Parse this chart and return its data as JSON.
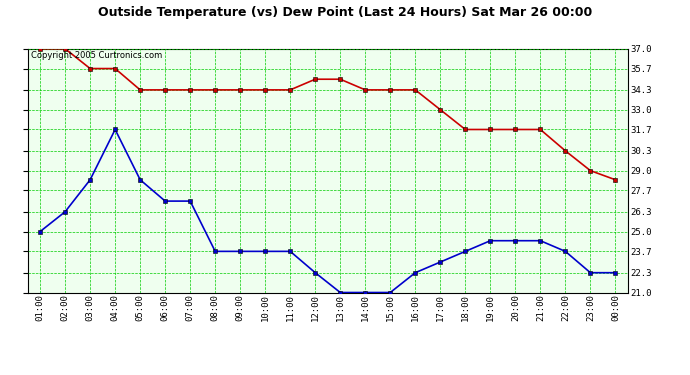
{
  "title": "Outside Temperature (vs) Dew Point (Last 24 Hours) Sat Mar 26 00:00",
  "copyright": "Copyright 2005 Curtronics.com",
  "x_labels": [
    "01:00",
    "02:00",
    "03:00",
    "04:00",
    "05:00",
    "06:00",
    "07:00",
    "08:00",
    "09:00",
    "10:00",
    "11:00",
    "12:00",
    "13:00",
    "14:00",
    "15:00",
    "16:00",
    "17:00",
    "18:00",
    "19:00",
    "20:00",
    "21:00",
    "22:00",
    "23:00",
    "00:00"
  ],
  "temp_values": [
    37.0,
    37.0,
    35.7,
    35.7,
    34.3,
    34.3,
    34.3,
    34.3,
    34.3,
    34.3,
    34.3,
    35.0,
    35.0,
    34.3,
    34.3,
    34.3,
    33.0,
    31.7,
    31.7,
    31.7,
    31.7,
    30.3,
    29.0,
    28.4
  ],
  "dew_values": [
    25.0,
    26.3,
    28.4,
    31.7,
    28.4,
    27.0,
    27.0,
    23.7,
    23.7,
    23.7,
    23.7,
    22.3,
    21.0,
    21.0,
    21.0,
    22.3,
    23.0,
    23.7,
    24.4,
    24.4,
    24.4,
    23.7,
    22.3,
    22.3
  ],
  "temp_color": "#cc0000",
  "dew_color": "#0000cc",
  "bg_color": "#ffffff",
  "plot_bg_color": "#efffef",
  "grid_color": "#00cc00",
  "title_color": "#000000",
  "border_color": "#000000",
  "ylim_min": 21.0,
  "ylim_max": 37.0,
  "y_ticks": [
    21.0,
    22.3,
    23.7,
    25.0,
    26.3,
    27.7,
    29.0,
    30.3,
    31.7,
    33.0,
    34.3,
    35.7,
    37.0
  ],
  "marker_size": 3,
  "line_width": 1.2,
  "title_fontsize": 9,
  "tick_fontsize": 6.5,
  "copyright_fontsize": 6
}
